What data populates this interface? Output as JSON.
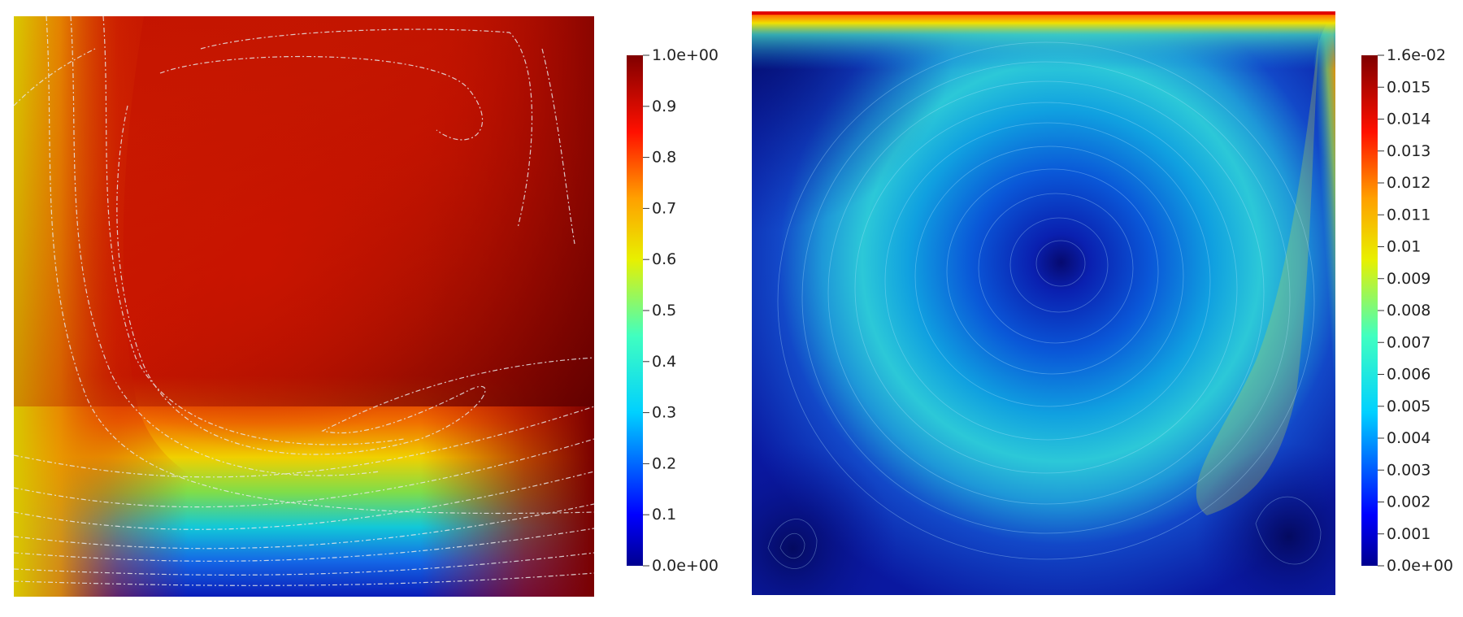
{
  "panels": {
    "left": {
      "colorbar": {
        "min_label": "0.0e+00",
        "max_label": "1.0e+00",
        "ticks": [
          "0.1",
          "0.2",
          "0.3",
          "0.4",
          "0.5",
          "0.6",
          "0.7",
          "0.8",
          "0.9"
        ]
      }
    },
    "right": {
      "colorbar": {
        "min_label": "0.0e+00",
        "max_label": "1.6e-02",
        "ticks": [
          "0.001",
          "0.002",
          "0.003",
          "0.004",
          "0.005",
          "0.006",
          "0.007",
          "0.008",
          "0.009",
          "0.01",
          "0.011",
          "0.012",
          "0.013",
          "0.014",
          "0.015"
        ]
      }
    }
  },
  "colors": {
    "jet_dark_red": "#800000",
    "jet_red": "#ff0000",
    "jet_orange": "#ff8000",
    "jet_yellow": "#ffff00",
    "jet_cyan": "#00ffff",
    "jet_blue": "#0000ff",
    "jet_dark_blue": "#00008f"
  }
}
